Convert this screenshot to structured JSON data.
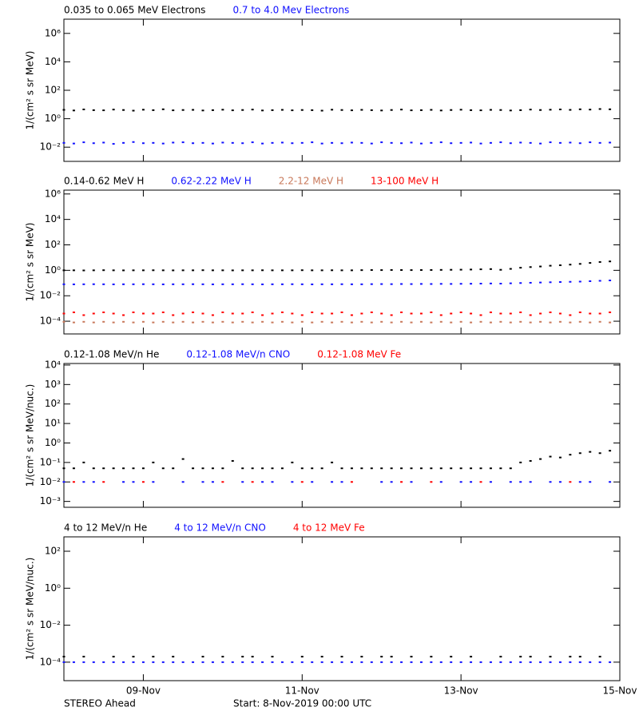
{
  "chart_data": [
    {
      "type": "scatter",
      "log_scale": true,
      "ylabel": "1/(cm² s sr MeV)",
      "xlim": [
        0,
        168
      ],
      "ylim": [
        0.001,
        10000000
      ],
      "yticks": [
        {
          "value": 0.01,
          "label": "10⁻²"
        },
        {
          "value": 1,
          "label": "10⁰"
        },
        {
          "value": 100,
          "label": "10²"
        },
        {
          "value": 10000,
          "label": "10⁴"
        },
        {
          "value": 1000000,
          "label": "10⁶"
        }
      ],
      "x": [
        0,
        3,
        6,
        9,
        12,
        15,
        18,
        21,
        24,
        27,
        30,
        33,
        36,
        39,
        42,
        45,
        48,
        51,
        54,
        57,
        60,
        63,
        66,
        69,
        72,
        75,
        78,
        81,
        84,
        87,
        90,
        93,
        96,
        99,
        102,
        105,
        108,
        111,
        114,
        117,
        120,
        123,
        126,
        129,
        132,
        135,
        138,
        141,
        144,
        147,
        150,
        153,
        156,
        159,
        162,
        165
      ],
      "series": [
        {
          "name": "0.035 to 0.065 MeV Electrons",
          "color": "#000000",
          "values": [
            4.2,
            3.8,
            4.5,
            4,
            3.9,
            4.4,
            4.1,
            3.7,
            4.3,
            4,
            4.6,
            3.9,
            4.1,
            4.2,
            3.8,
            4,
            4.3,
            3.9,
            4.1,
            4.4,
            3.8,
            4,
            4.2,
            3.9,
            4.1,
            4,
            3.7,
            4.3,
            4.1,
            3.9,
            4.2,
            4,
            3.8,
            4.1,
            4.4,
            3.9,
            4,
            4.2,
            3.8,
            4.1,
            4.3,
            4,
            3.9,
            4.2,
            4.1,
            3.8,
            4,
            4.4,
            4.1,
            4.3,
            4.5,
            4.2,
            4.6,
            4.4,
            4.8,
            4.6
          ]
        },
        {
          "name": "0.7 to 4.0 Mev Electrons",
          "color": "#1010ff",
          "values": [
            0.02,
            0.018,
            0.022,
            0.019,
            0.021,
            0.017,
            0.02,
            0.023,
            0.019,
            0.02,
            0.018,
            0.021,
            0.022,
            0.019,
            0.02,
            0.018,
            0.021,
            0.02,
            0.019,
            0.022,
            0.018,
            0.02,
            0.021,
            0.019,
            0.02,
            0.022,
            0.018,
            0.02,
            0.019,
            0.021,
            0.02,
            0.018,
            0.022,
            0.02,
            0.019,
            0.021,
            0.018,
            0.02,
            0.022,
            0.019,
            0.02,
            0.021,
            0.018,
            0.02,
            0.022,
            0.019,
            0.021,
            0.02,
            0.018,
            0.022,
            0.02,
            0.021,
            0.019,
            0.022,
            0.02,
            0.021
          ]
        }
      ]
    },
    {
      "type": "scatter",
      "log_scale": true,
      "ylabel": "1/(cm² s sr MeV)",
      "xlim": [
        0,
        168
      ],
      "ylim": [
        1e-05,
        2000000
      ],
      "yticks": [
        {
          "value": 0.0001,
          "label": "10⁻⁴"
        },
        {
          "value": 0.01,
          "label": "10⁻²"
        },
        {
          "value": 1,
          "label": "10⁰"
        },
        {
          "value": 100,
          "label": "10²"
        },
        {
          "value": 10000,
          "label": "10⁴"
        },
        {
          "value": 1000000,
          "label": "10⁶"
        }
      ],
      "x": [
        0,
        3,
        6,
        9,
        12,
        15,
        18,
        21,
        24,
        27,
        30,
        33,
        36,
        39,
        42,
        45,
        48,
        51,
        54,
        57,
        60,
        63,
        66,
        69,
        72,
        75,
        78,
        81,
        84,
        87,
        90,
        93,
        96,
        99,
        102,
        105,
        108,
        111,
        114,
        117,
        120,
        123,
        126,
        129,
        132,
        135,
        138,
        141,
        144,
        147,
        150,
        153,
        156,
        159,
        162,
        165
      ],
      "series": [
        {
          "name": "0.14-0.62 MeV H",
          "color": "#000000",
          "values": [
            1,
            1,
            0.98,
            1,
            1.02,
            1,
            0.99,
            1,
            1,
            1.01,
            1,
            0.99,
            1,
            1,
            1.02,
            1,
            1,
            0.99,
            1,
            1,
            1.01,
            1,
            1,
            1,
            1.02,
            1,
            1,
            1.01,
            1,
            1,
            1.03,
            1.05,
            1.04,
            1.06,
            1.05,
            1.04,
            1.05,
            1.06,
            1.08,
            1.1,
            1.12,
            1.15,
            1.2,
            1.25,
            1.1,
            1.3,
            1.6,
            1.8,
            2,
            2.3,
            2.5,
            2.8,
            3.2,
            3.8,
            4.5,
            5
          ]
        },
        {
          "name": "0.62-2.22 MeV H",
          "color": "#1010ff",
          "values": [
            0.08,
            0.079,
            0.08,
            0.081,
            0.08,
            0.079,
            0.08,
            0.08,
            0.081,
            0.08,
            0.079,
            0.08,
            0.08,
            0.081,
            0.08,
            0.079,
            0.08,
            0.08,
            0.081,
            0.08,
            0.079,
            0.08,
            0.08,
            0.081,
            0.08,
            0.079,
            0.08,
            0.08,
            0.081,
            0.08,
            0.08,
            0.082,
            0.083,
            0.082,
            0.084,
            0.083,
            0.085,
            0.084,
            0.086,
            0.085,
            0.087,
            0.088,
            0.09,
            0.092,
            0.09,
            0.095,
            0.1,
            0.105,
            0.11,
            0.115,
            0.12,
            0.125,
            0.13,
            0.14,
            0.15,
            0.16
          ]
        },
        {
          "name": "2.2-12 MeV H",
          "color": "#c8785a",
          "values": [
            9e-05,
            8e-05,
            9e-05,
            8e-05,
            9e-05,
            8e-05,
            9e-05,
            8e-05,
            9e-05,
            8e-05,
            9e-05,
            8e-05,
            9e-05,
            8e-05,
            9e-05,
            8e-05,
            9e-05,
            8e-05,
            9e-05,
            8e-05,
            9e-05,
            8e-05,
            9e-05,
            8e-05,
            9e-05,
            8e-05,
            9e-05,
            8e-05,
            9e-05,
            8e-05,
            9e-05,
            8e-05,
            9e-05,
            8e-05,
            9e-05,
            8e-05,
            9e-05,
            8e-05,
            9e-05,
            8e-05,
            9e-05,
            8e-05,
            9e-05,
            8e-05,
            9e-05,
            8e-05,
            9e-05,
            8e-05,
            9e-05,
            8e-05,
            9e-05,
            8e-05,
            9e-05,
            8e-05,
            9e-05,
            8e-05
          ]
        },
        {
          "name": "13-100 MeV H",
          "color": "#ff0000",
          "values": [
            0.0004,
            0.0005,
            0.0003,
            0.0004,
            0.0005,
            0.0004,
            0.0003,
            0.0005,
            0.0004,
            0.0004,
            0.0005,
            0.0003,
            0.0004,
            0.0005,
            0.0004,
            0.0003,
            0.0005,
            0.0004,
            0.0004,
            0.0005,
            0.0003,
            0.0004,
            0.0005,
            0.0004,
            0.0003,
            0.0005,
            0.0004,
            0.0004,
            0.0005,
            0.0003,
            0.0004,
            0.0005,
            0.0004,
            0.0003,
            0.0005,
            0.0004,
            0.0004,
            0.0005,
            0.0003,
            0.0004,
            0.0005,
            0.0004,
            0.0003,
            0.0005,
            0.0004,
            0.0004,
            0.0005,
            0.0003,
            0.0004,
            0.0005,
            0.0004,
            0.0003,
            0.0005,
            0.0004,
            0.0004,
            0.0005
          ]
        }
      ]
    },
    {
      "type": "scatter",
      "log_scale": true,
      "ylabel": "1/(cm² s sr MeV/nuc.)",
      "xlim": [
        0,
        168
      ],
      "ylim": [
        0.0005,
        12000
      ],
      "yticks": [
        {
          "value": 0.001,
          "label": "10⁻³"
        },
        {
          "value": 0.01,
          "label": "10⁻²"
        },
        {
          "value": 0.1,
          "label": "10⁻¹"
        },
        {
          "value": 1,
          "label": "10⁰"
        },
        {
          "value": 10,
          "label": "10¹"
        },
        {
          "value": 100,
          "label": "10²"
        },
        {
          "value": 1000,
          "label": "10³"
        },
        {
          "value": 10000,
          "label": "10⁴"
        }
      ],
      "x": [
        0,
        3,
        6,
        9,
        12,
        15,
        18,
        21,
        24,
        27,
        30,
        33,
        36,
        39,
        42,
        45,
        48,
        51,
        54,
        57,
        60,
        63,
        66,
        69,
        72,
        75,
        78,
        81,
        84,
        87,
        90,
        93,
        96,
        99,
        102,
        105,
        108,
        111,
        114,
        117,
        120,
        123,
        126,
        129,
        132,
        135,
        138,
        141,
        144,
        147,
        150,
        153,
        156,
        159,
        162,
        165
      ],
      "series": [
        {
          "name": "0.12-1.08 MeV/n He",
          "color": "#000000",
          "values": [
            0.05,
            0.05,
            0.1,
            0.05,
            0.05,
            0.05,
            0.05,
            0.05,
            0.05,
            0.1,
            0.05,
            0.05,
            0.15,
            0.05,
            0.05,
            0.05,
            0.05,
            0.12,
            0.05,
            0.05,
            0.05,
            0.05,
            0.05,
            0.1,
            0.05,
            0.05,
            0.05,
            0.1,
            0.05,
            0.05,
            0.05,
            0.05,
            0.05,
            0.05,
            0.05,
            0.05,
            0.05,
            0.05,
            0.05,
            0.05,
            0.05,
            0.05,
            0.05,
            0.05,
            0.05,
            0.05,
            0.1,
            0.12,
            0.15,
            0.2,
            0.18,
            0.25,
            0.3,
            0.35,
            0.3,
            0.4
          ]
        },
        {
          "name": "0.12-1.08 MeV/n CNO",
          "color": "#1010ff",
          "values": [
            0.01,
            null,
            0.01,
            0.01,
            null,
            null,
            0.01,
            0.01,
            null,
            0.01,
            null,
            null,
            0.01,
            null,
            0.01,
            0.01,
            null,
            null,
            0.01,
            null,
            0.01,
            0.01,
            null,
            0.01,
            null,
            0.01,
            null,
            0.01,
            0.01,
            null,
            null,
            null,
            0.01,
            0.01,
            null,
            0.01,
            null,
            null,
            0.01,
            null,
            0.01,
            0.01,
            null,
            0.01,
            null,
            0.01,
            0.01,
            0.01,
            null,
            0.01,
            0.01,
            null,
            0.01,
            0.01,
            null,
            0.01
          ]
        },
        {
          "name": "0.12-1.08 MeV Fe",
          "color": "#ff0000",
          "values": [
            null,
            0.01,
            null,
            null,
            0.01,
            null,
            null,
            null,
            0.01,
            null,
            null,
            null,
            null,
            null,
            null,
            null,
            0.01,
            null,
            null,
            0.01,
            null,
            null,
            null,
            null,
            0.01,
            null,
            null,
            null,
            null,
            0.01,
            null,
            null,
            null,
            null,
            0.01,
            null,
            null,
            0.01,
            null,
            null,
            null,
            null,
            0.01,
            null,
            null,
            null,
            null,
            null,
            null,
            null,
            null,
            0.01,
            null,
            null,
            null,
            null
          ]
        }
      ]
    },
    {
      "type": "scatter",
      "log_scale": true,
      "ylabel": "1/(cm² s sr MeV/nuc.)",
      "xlim": [
        0,
        168
      ],
      "ylim": [
        1e-05,
        600
      ],
      "yticks": [
        {
          "value": 0.0001,
          "label": "10⁻⁴"
        },
        {
          "value": 0.01,
          "label": "10⁻²"
        },
        {
          "value": 1,
          "label": "10⁰"
        },
        {
          "value": 100,
          "label": "10²"
        }
      ],
      "xticks": [
        {
          "value": 24,
          "label": "09-Nov"
        },
        {
          "value": 72,
          "label": "11-Nov"
        },
        {
          "value": 120,
          "label": "13-Nov"
        },
        {
          "value": 168,
          "label": "15-Nov"
        }
      ],
      "x": [
        0,
        3,
        6,
        9,
        12,
        15,
        18,
        21,
        24,
        27,
        30,
        33,
        36,
        39,
        42,
        45,
        48,
        51,
        54,
        57,
        60,
        63,
        66,
        69,
        72,
        75,
        78,
        81,
        84,
        87,
        90,
        93,
        96,
        99,
        102,
        105,
        108,
        111,
        114,
        117,
        120,
        123,
        126,
        129,
        132,
        135,
        138,
        141,
        144,
        147,
        150,
        153,
        156,
        159,
        162,
        165
      ],
      "series": [
        {
          "name": "4 to 12 MeV/n He",
          "color": "#000000",
          "values": [
            0.0002,
            null,
            0.0002,
            null,
            null,
            0.0002,
            null,
            0.0002,
            null,
            0.0002,
            null,
            0.0002,
            null,
            null,
            0.0002,
            null,
            0.0002,
            null,
            0.0002,
            0.0002,
            null,
            0.0002,
            null,
            null,
            0.0002,
            null,
            0.0002,
            null,
            0.0002,
            null,
            0.0002,
            null,
            0.0002,
            0.0002,
            null,
            0.0002,
            null,
            0.0002,
            null,
            0.0002,
            null,
            0.0002,
            null,
            null,
            0.0002,
            null,
            0.0002,
            0.0002,
            null,
            0.0002,
            null,
            0.0002,
            0.0002,
            null,
            0.0002,
            null
          ]
        },
        {
          "name": "4 to 12 MeV/n CNO",
          "color": "#1010ff",
          "values": [
            0.0001,
            0.0001,
            0.0001,
            0.0001,
            0.0001,
            0.0001,
            0.0001,
            0.0001,
            0.0001,
            0.0001,
            0.0001,
            0.0001,
            0.0001,
            0.0001,
            0.0001,
            0.0001,
            0.0001,
            0.0001,
            0.0001,
            0.0001,
            0.0001,
            0.0001,
            0.0001,
            0.0001,
            0.0001,
            0.0001,
            0.0001,
            0.0001,
            0.0001,
            0.0001,
            0.0001,
            0.0001,
            0.0001,
            0.0001,
            0.0001,
            0.0001,
            0.0001,
            0.0001,
            0.0001,
            0.0001,
            0.0001,
            0.0001,
            0.0001,
            0.0001,
            0.0001,
            0.0001,
            0.0001,
            0.0001,
            0.0001,
            0.0001,
            0.0001,
            0.0001,
            0.0001,
            0.0001,
            0.0001,
            0.0001
          ]
        },
        {
          "name": "4 to 12 MeV Fe",
          "color": "#ff0000",
          "values": []
        }
      ]
    }
  ],
  "footer": {
    "left": "STEREO Ahead",
    "start": "Start:  8-Nov-2019 00:00 UTC"
  }
}
